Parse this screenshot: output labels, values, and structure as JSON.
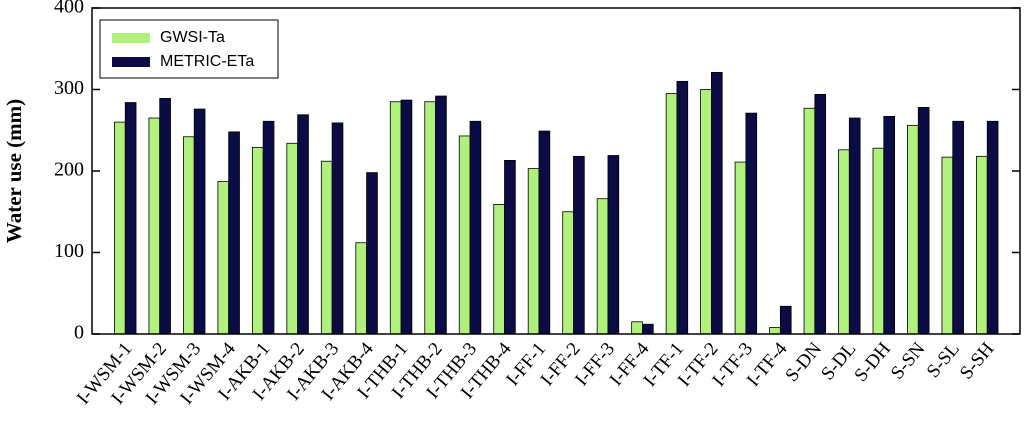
{
  "chart_data": {
    "type": "bar",
    "y_label": "Water use (mm)",
    "categories": [
      "I-WSM-1",
      "I-WSM-2",
      "I-WSM-3",
      "I-WSM-4",
      "I-AKB-1",
      "I-AKB-2",
      "I-AKB-3",
      "I-AKB-4",
      "I-THB-1",
      "I-THB-2",
      "I-THB-3",
      "I-THB-4",
      "I-FF-1",
      "I-FF-2",
      "I-FF-3",
      "I-FF-4",
      "I-TF-1",
      "I-TF-2",
      "I-TF-3",
      "I-TF-4",
      "S-DN",
      "S-DL",
      "S-DH",
      "S-SN",
      "S-SL",
      "S-SH"
    ],
    "series": [
      {
        "name": "GWSI-Ta",
        "color": "#b0f07c",
        "values": [
          260,
          265,
          242,
          187,
          229,
          234,
          212,
          112,
          285,
          285,
          243,
          159,
          203,
          150,
          166,
          15,
          295,
          300,
          211,
          8,
          277,
          226,
          228,
          256,
          217,
          218
        ]
      },
      {
        "name": "METRIC-ETa",
        "color": "#0b0b45",
        "values": [
          284,
          289,
          276,
          248,
          261,
          269,
          259,
          198,
          287,
          292,
          261,
          213,
          249,
          218,
          219,
          12,
          310,
          321,
          271,
          34,
          294,
          265,
          267,
          278,
          261,
          261
        ]
      }
    ],
    "ylim": [
      0,
      400
    ],
    "yticks": [
      0,
      100,
      200,
      300,
      400
    ],
    "legend": "upper-left"
  }
}
